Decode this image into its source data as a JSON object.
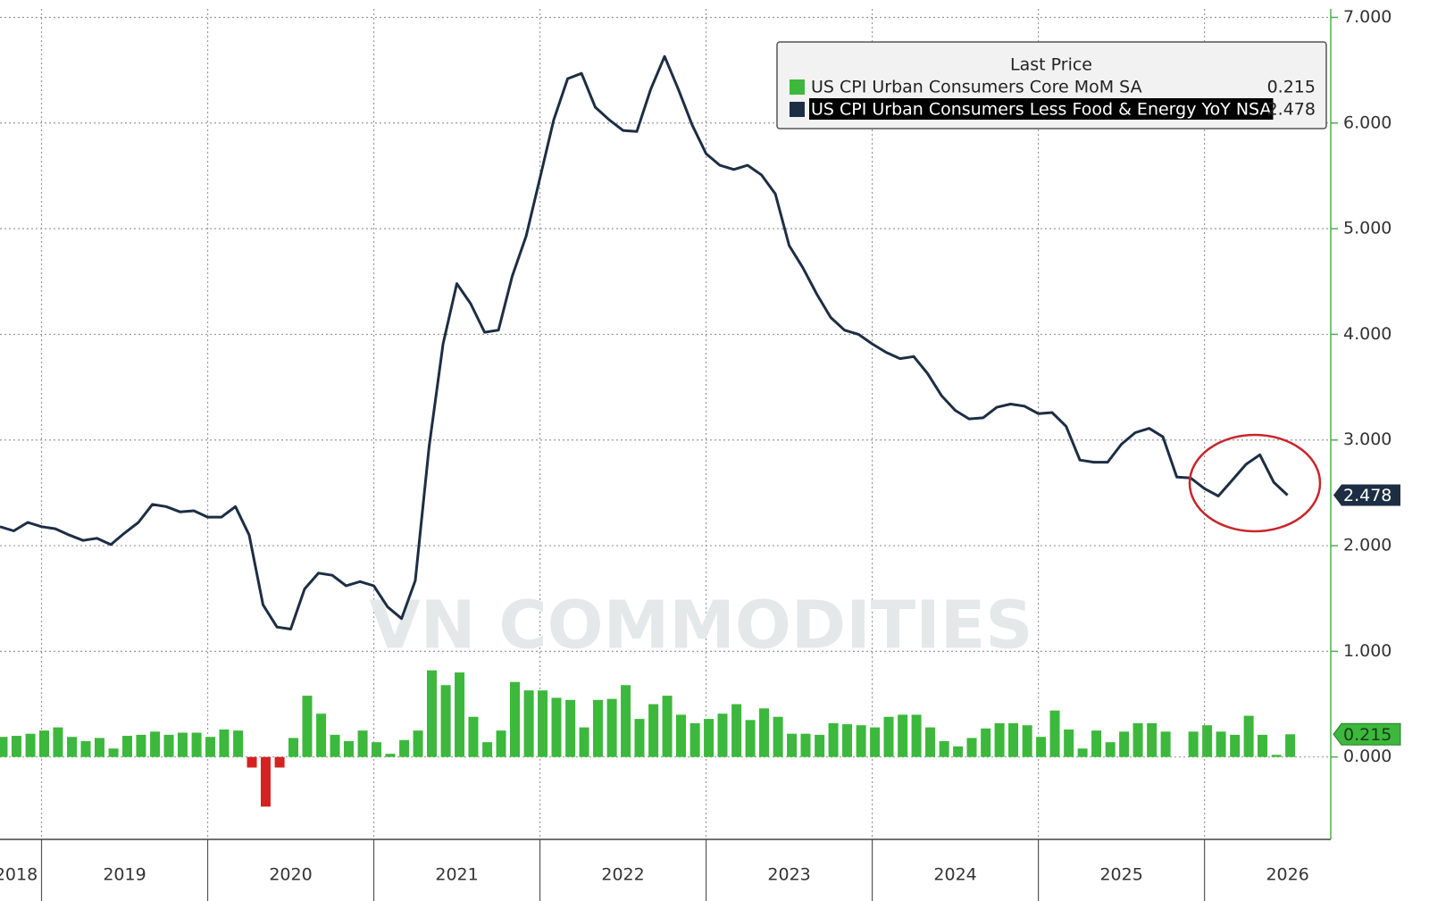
{
  "chart_data": {
    "type": "combo",
    "legend_title": "Last Price",
    "legend": "upper right",
    "watermark": "VN COMMODITIES",
    "grid": true,
    "x": [
      2018.75,
      2018.833,
      2018.917,
      2019,
      2019.083,
      2019.167,
      2019.25,
      2019.333,
      2019.417,
      2019.5,
      2019.583,
      2019.667,
      2019.75,
      2019.833,
      2019.917,
      2020,
      2020.083,
      2020.167,
      2020.25,
      2020.333,
      2020.417,
      2020.5,
      2020.583,
      2020.667,
      2020.75,
      2020.833,
      2020.917,
      2021,
      2021.083,
      2021.167,
      2021.25,
      2021.333,
      2021.417,
      2021.5,
      2021.583,
      2021.667,
      2021.75,
      2021.833,
      2021.917,
      2022,
      2022.083,
      2022.167,
      2022.25,
      2022.333,
      2022.417,
      2022.5,
      2022.583,
      2022.667,
      2022.75,
      2022.833,
      2022.917,
      2023,
      2023.083,
      2023.167,
      2023.25,
      2023.333,
      2023.417,
      2023.5,
      2023.583,
      2023.667,
      2023.75,
      2023.833,
      2023.917,
      2024,
      2024.083,
      2024.167,
      2024.25,
      2024.333,
      2024.417,
      2024.5,
      2024.583,
      2024.667,
      2024.75,
      2024.833,
      2024.917,
      2025,
      2025.083,
      2025.167,
      2025.25,
      2025.333,
      2025.417,
      2025.5,
      2025.583,
      2025.667,
      2025.75,
      2025.833,
      2025.917,
      2026,
      2026.083,
      2026.167,
      2026.25,
      2026.333,
      2026.417,
      2026.5
    ],
    "series": [
      {
        "name": "US CPI Urban Consumers Core MoM SA",
        "type": "bar",
        "color": "#3cb83c",
        "negative_color": "#d42222",
        "values": [
          0.19,
          0.2,
          0.22,
          0.25,
          0.28,
          0.19,
          0.15,
          0.18,
          0.08,
          0.2,
          0.21,
          0.24,
          0.21,
          0.23,
          0.23,
          0.19,
          0.26,
          0.25,
          -0.1,
          -0.47,
          -0.1,
          0.18,
          0.58,
          0.41,
          0.21,
          0.15,
          0.25,
          0.14,
          0.03,
          0.16,
          0.25,
          0.82,
          0.68,
          0.8,
          0.38,
          0.14,
          0.25,
          0.71,
          0.63,
          0.63,
          0.56,
          0.54,
          0.28,
          0.54,
          0.55,
          0.68,
          0.36,
          0.5,
          0.58,
          0.4,
          0.32,
          0.36,
          0.41,
          0.5,
          0.35,
          0.46,
          0.38,
          0.22,
          0.22,
          0.21,
          0.32,
          0.31,
          0.3,
          0.28,
          0.38,
          0.4,
          0.4,
          0.28,
          0.15,
          0.1,
          0.18,
          0.27,
          0.32,
          0.32,
          0.3,
          0.19,
          0.44,
          0.26,
          0.08,
          0.25,
          0.14,
          0.24,
          0.32,
          0.32,
          0.24,
          null,
          0.24,
          0.3,
          0.24,
          0.21,
          0.39,
          0.21,
          0.02,
          0.215
        ]
      },
      {
        "name": "US CPI Urban Consumers Less Food & Energy YoY NSA",
        "type": "line",
        "color": "#1d2e44",
        "values": [
          2.18,
          2.14,
          2.22,
          2.18,
          2.16,
          2.1,
          2.05,
          2.07,
          2.01,
          2.12,
          2.22,
          2.39,
          2.37,
          2.32,
          2.33,
          2.27,
          2.27,
          2.37,
          2.1,
          1.44,
          1.23,
          1.21,
          1.59,
          1.74,
          1.72,
          1.62,
          1.66,
          1.62,
          1.42,
          1.31,
          1.67,
          2.94,
          3.91,
          4.48,
          4.29,
          4.02,
          4.04,
          4.55,
          4.93,
          5.48,
          6.03,
          6.42,
          6.47,
          6.15,
          6.03,
          5.93,
          5.92,
          6.32,
          6.63,
          6.32,
          5.98,
          5.71,
          5.6,
          5.56,
          5.6,
          5.51,
          5.33,
          4.84,
          4.63,
          4.38,
          4.16,
          4.04,
          4.0,
          3.91,
          3.83,
          3.77,
          3.79,
          3.63,
          3.42,
          3.28,
          3.2,
          3.21,
          3.31,
          3.34,
          3.32,
          3.25,
          3.26,
          3.13,
          2.81,
          2.79,
          2.79,
          2.96,
          3.07,
          3.11,
          3.03,
          2.65,
          2.64,
          2.54,
          2.47,
          2.62,
          2.77,
          2.86,
          2.6,
          2.478
        ]
      }
    ],
    "xlim": [
      2018.75,
      2026.76
    ],
    "xticks": [
      2018,
      2019,
      2020,
      2021,
      2022,
      2023,
      2024,
      2025,
      2026
    ],
    "ylim": [
      -0.78,
      7.08
    ],
    "yticks": [
      {
        "value": 0,
        "label": "0.000"
      },
      {
        "value": 1,
        "label": "1.000"
      },
      {
        "value": 2,
        "label": "2.000"
      },
      {
        "value": 3,
        "label": "3.000"
      },
      {
        "value": 4,
        "label": "4.000"
      },
      {
        "value": 5,
        "label": "5.000"
      },
      {
        "value": 6,
        "label": "6.000"
      },
      {
        "value": 7,
        "label": "7.000"
      }
    ]
  }
}
